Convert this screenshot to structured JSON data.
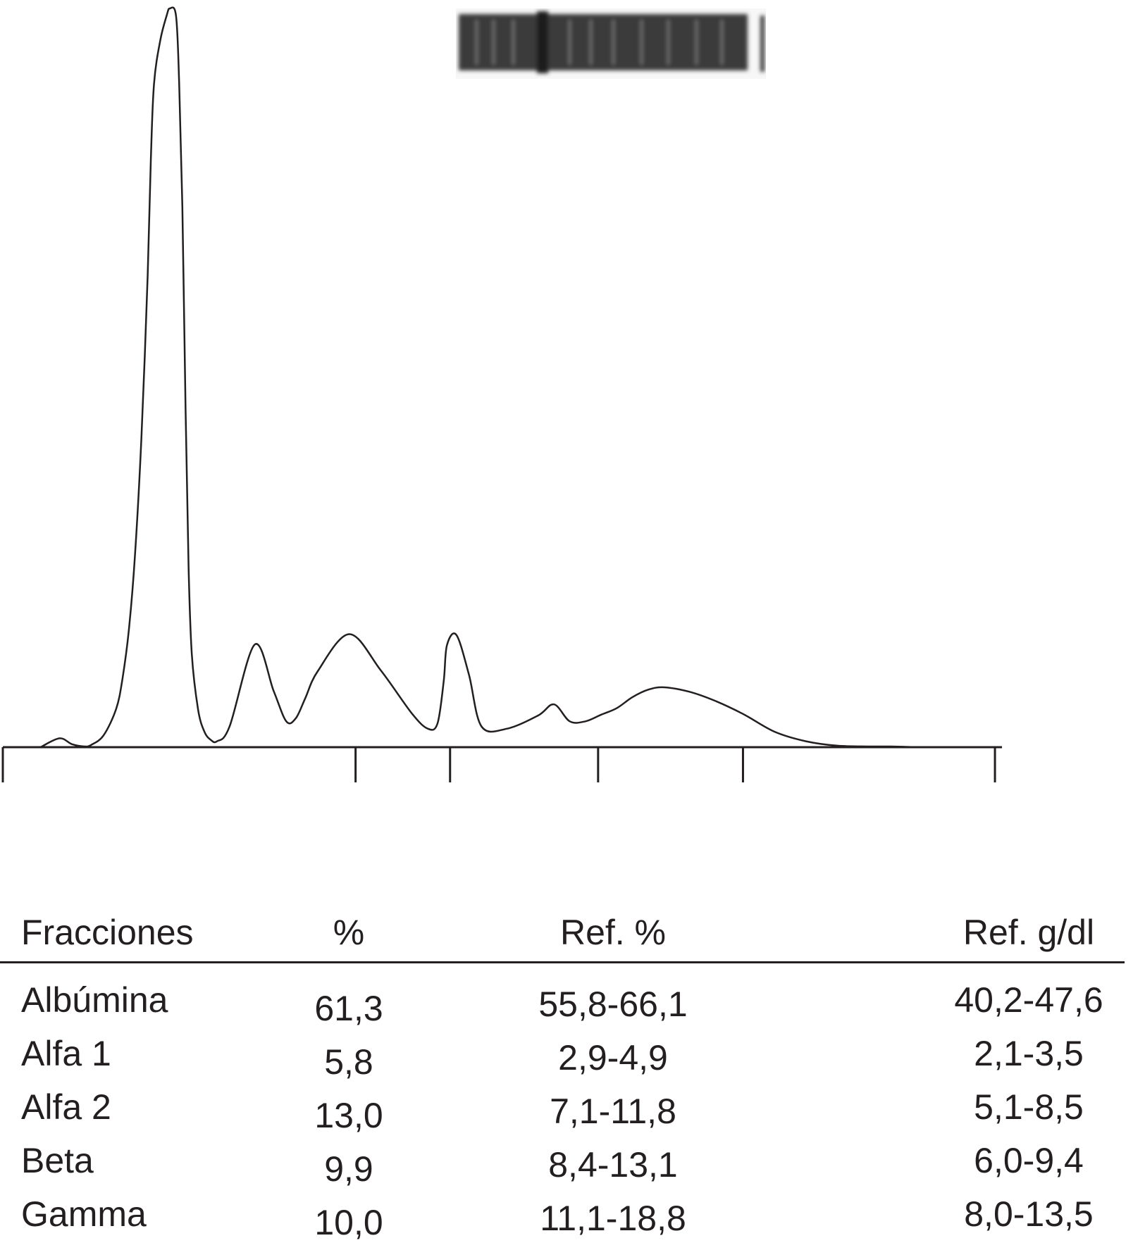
{
  "chart_data": {
    "type": "line",
    "title": "",
    "xlabel": "",
    "ylabel": "",
    "grid": false,
    "legend": "none",
    "ylim": [
      0,
      100
    ],
    "series": [
      {
        "x": [
          12,
          18,
          22,
          26,
          28,
          32,
          36,
          38,
          40,
          42,
          44,
          46,
          47,
          48,
          50,
          52,
          53,
          55,
          56,
          57,
          58,
          59,
          60,
          62,
          64,
          66,
          68,
          72,
          80,
          86,
          90,
          93,
          96,
          100,
          110,
          120,
          130,
          135,
          138,
          140,
          141,
          144,
          148,
          152,
          160,
          170,
          175,
          180,
          185,
          190,
          195,
          200,
          205,
          210,
          218,
          226,
          235,
          245,
          255,
          265,
          275,
          282,
          290
        ],
        "y": [
          0,
          1.2,
          0.4,
          0.1,
          0.3,
          1.6,
          5.2,
          9.3,
          15.8,
          26.2,
          41.9,
          63.9,
          79.6,
          89.8,
          95.7,
          99.0,
          100.0,
          99.0,
          89.8,
          73.2,
          46.1,
          24.1,
          12.6,
          5.1,
          2.1,
          1.0,
          0.8,
          2.8,
          13.9,
          7.6,
          3.5,
          3.9,
          6.6,
          10.3,
          15.3,
          10.4,
          4.5,
          2.5,
          3.2,
          9.0,
          13.8,
          15.2,
          9.8,
          2.8,
          2.5,
          4.3,
          5.8,
          3.5,
          3.5,
          4.4,
          5.3,
          6.8,
          7.8,
          8.1,
          7.5,
          6.3,
          4.5,
          2.1,
          0.8,
          0.2,
          0.1,
          0.1,
          0
        ]
      }
    ],
    "separators_x": [
      0,
      112,
      142,
      189,
      235,
      315
    ]
  },
  "table": {
    "headers": {
      "fraction": "Fracciones",
      "percent": "%",
      "ref_percent": "Ref. %",
      "ref_gdl": "Ref. g/dl"
    },
    "rows": [
      {
        "fraction": "Albúmina",
        "percent": "61,3",
        "ref_percent": "55,8-66,1",
        "ref_gdl": "40,2-47,6"
      },
      {
        "fraction": "Alfa 1",
        "percent": "5,8",
        "ref_percent": "2,9-4,9",
        "ref_gdl": "2,1-3,5"
      },
      {
        "fraction": "Alfa 2",
        "percent": "13,0",
        "ref_percent": "7,1-11,8",
        "ref_gdl": "5,1-8,5"
      },
      {
        "fraction": "Beta",
        "percent": "9,9",
        "ref_percent": "8,4-13,1",
        "ref_gdl": "6,0-9,4"
      },
      {
        "fraction": "Gamma",
        "percent": "10,0",
        "ref_percent": "11,1-18,8",
        "ref_gdl": "8,0-13,5"
      }
    ]
  },
  "colors": {
    "ink": "#231f20",
    "band": "#3a3a3a"
  }
}
